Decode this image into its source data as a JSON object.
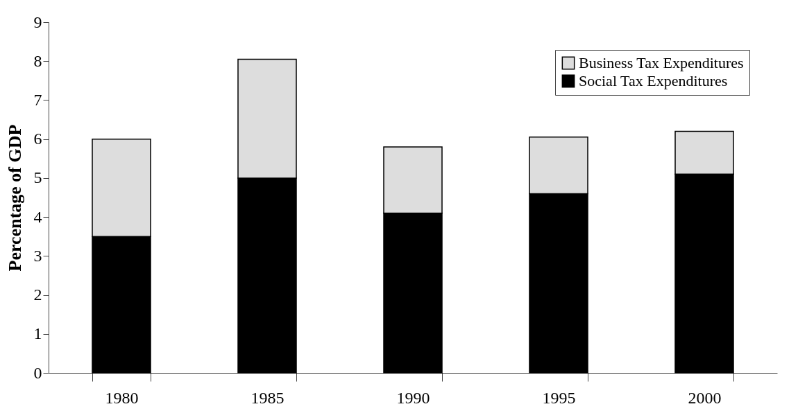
{
  "chart_data": {
    "type": "bar",
    "ylabel": "Percentage of GDP",
    "categories": [
      "1980",
      "1985",
      "1990",
      "1995",
      "2000"
    ],
    "stacked": true,
    "series": [
      {
        "name": "Social Tax Expenditures",
        "color": "#000000",
        "values": [
          3.5,
          5.0,
          4.1,
          4.6,
          5.1
        ]
      },
      {
        "name": "Business Tax Expenditures",
        "color": "#dddddd",
        "values": [
          2.5,
          3.05,
          1.7,
          1.45,
          1.1
        ]
      }
    ],
    "ylim": [
      0,
      9
    ],
    "yticks": [
      0,
      1,
      2,
      3,
      4,
      5,
      6,
      7,
      8,
      9
    ],
    "grid": false,
    "legend": "top right"
  }
}
